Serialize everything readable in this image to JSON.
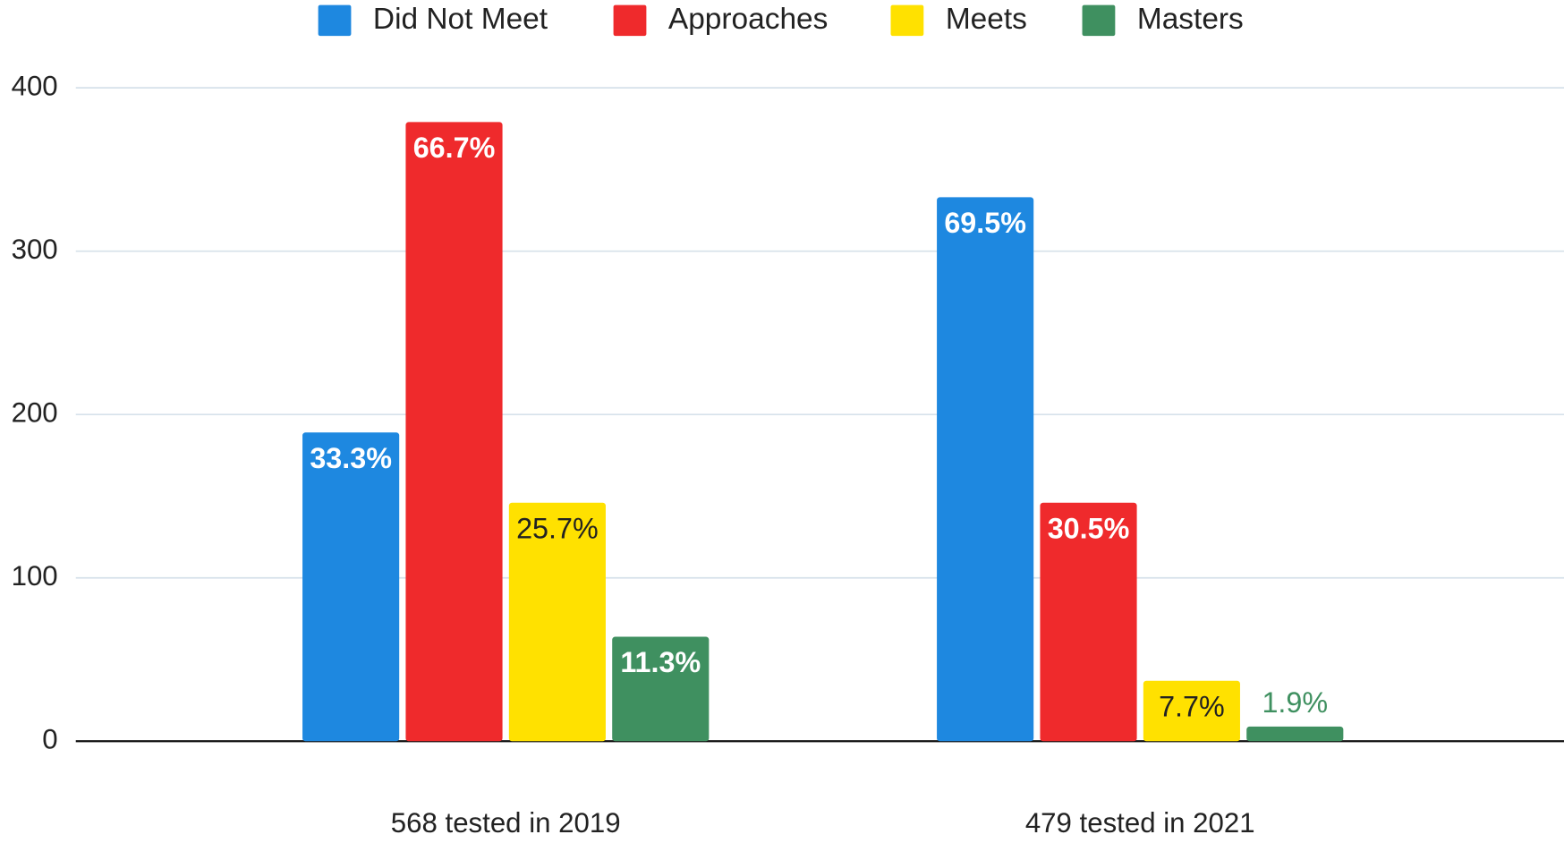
{
  "chart_data": {
    "type": "bar",
    "categories": [
      "568 tested in 2019",
      "479 tested in 2021"
    ],
    "series": [
      {
        "name": "Did Not Meet",
        "color": "#1e88e0",
        "values": [
          189,
          333
        ],
        "data_labels": [
          "33.3%",
          "69.5%"
        ]
      },
      {
        "name": "Approaches",
        "color": "#ef2a2c",
        "values": [
          379,
          146
        ],
        "data_labels": [
          "66.7%",
          "30.5%"
        ]
      },
      {
        "name": "Meets",
        "color": "#ffe100",
        "values": [
          146,
          37
        ],
        "data_labels": [
          "25.7%",
          "7.7%"
        ]
      },
      {
        "name": "Masters",
        "color": "#3f9060",
        "values": [
          64,
          9
        ],
        "data_labels": [
          "11.3%",
          "1.9%"
        ]
      }
    ],
    "ylim": [
      0,
      400
    ],
    "yticks": [
      0,
      100,
      200,
      300,
      400
    ],
    "grid": true,
    "legend": "top"
  }
}
